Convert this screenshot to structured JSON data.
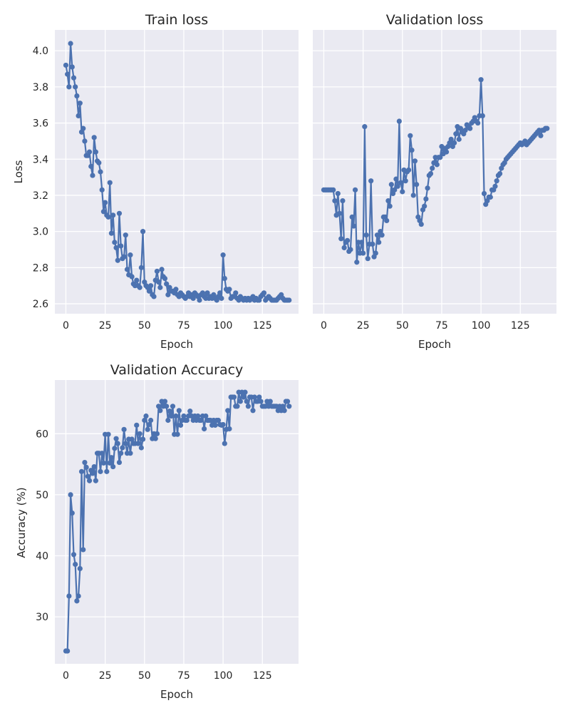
{
  "style": {
    "panel_bg": "#eaeaf2",
    "grid": "#ffffff",
    "series_color": "#4c72b0",
    "text": "#262626"
  },
  "chart_data": [
    {
      "type": "line",
      "title": "Train loss",
      "xlabel": "Epoch",
      "ylabel": "Loss",
      "xlim": [
        -7,
        148
      ],
      "ylim": [
        2.545,
        4.115
      ],
      "xticks": [
        0,
        25,
        50,
        75,
        100,
        125
      ],
      "xtick_labels": [
        "0",
        "25",
        "50",
        "75",
        "100",
        "125"
      ],
      "yticks": [
        2.6,
        2.8,
        3.0,
        3.2,
        3.4,
        3.6,
        3.8,
        4.0
      ],
      "ytick_labels": [
        "2.6",
        "2.8",
        "3.0",
        "3.2",
        "3.4",
        "3.6",
        "3.8",
        "4.0"
      ],
      "grid": true,
      "markers": true,
      "series": [
        {
          "values": [
            3.92,
            3.87,
            3.8,
            4.04,
            3.91,
            3.85,
            3.8,
            3.75,
            3.64,
            3.71,
            3.55,
            3.57,
            3.5,
            3.42,
            3.42,
            3.44,
            3.36,
            3.31,
            3.52,
            3.44,
            3.39,
            3.38,
            3.33,
            3.23,
            3.11,
            3.16,
            3.09,
            3.08,
            3.27,
            2.99,
            3.09,
            2.94,
            2.91,
            2.84,
            3.1,
            2.92,
            2.85,
            2.86,
            2.98,
            2.79,
            2.76,
            2.87,
            2.75,
            2.71,
            2.7,
            2.73,
            2.7,
            2.69,
            2.8,
            3.0,
            2.72,
            2.7,
            2.69,
            2.67,
            2.7,
            2.65,
            2.64,
            2.73,
            2.78,
            2.72,
            2.69,
            2.79,
            2.75,
            2.74,
            2.71,
            2.65,
            2.69,
            2.67,
            2.67,
            2.66,
            2.68,
            2.65,
            2.64,
            2.66,
            2.65,
            2.64,
            2.63,
            2.64,
            2.66,
            2.64,
            2.65,
            2.63,
            2.66,
            2.65,
            2.64,
            2.62,
            2.65,
            2.66,
            2.64,
            2.63,
            2.66,
            2.63,
            2.64,
            2.63,
            2.65,
            2.63,
            2.62,
            2.64,
            2.66,
            2.63,
            2.87,
            2.74,
            2.68,
            2.67,
            2.68,
            2.63,
            2.64,
            2.64,
            2.66,
            2.63,
            2.62,
            2.64,
            2.63,
            2.62,
            2.63,
            2.62,
            2.63,
            2.62,
            2.63,
            2.64,
            2.62,
            2.63,
            2.62,
            2.62,
            2.64,
            2.65,
            2.66,
            2.62,
            2.63,
            2.64,
            2.63,
            2.62,
            2.62,
            2.62,
            2.62,
            2.63,
            2.64,
            2.65,
            2.63,
            2.62,
            2.62,
            2.62,
            2.62
          ]
        }
      ]
    },
    {
      "type": "line",
      "title": "Validation loss",
      "xlabel": "Epoch",
      "ylabel": "",
      "xlim": [
        -7,
        148
      ],
      "ylim": [
        2.545,
        4.115
      ],
      "xticks": [
        0,
        25,
        50,
        75,
        100,
        125
      ],
      "xtick_labels": [
        "0",
        "25",
        "50",
        "75",
        "100",
        "125"
      ],
      "yticks": [
        2.6,
        2.8,
        3.0,
        3.2,
        3.4,
        3.6,
        3.8,
        4.0
      ],
      "ytick_labels": [],
      "shared_y_with_left": true,
      "grid": true,
      "markers": true,
      "series": [
        {
          "values": [
            3.23,
            3.23,
            3.23,
            3.23,
            3.23,
            3.23,
            3.23,
            3.17,
            3.09,
            3.21,
            3.1,
            2.96,
            3.17,
            2.91,
            2.94,
            2.95,
            2.89,
            2.9,
            3.08,
            3.03,
            3.23,
            2.83,
            2.94,
            2.88,
            2.94,
            2.88,
            3.58,
            2.98,
            2.85,
            2.93,
            3.28,
            2.93,
            2.86,
            2.88,
            2.98,
            2.94,
            3.0,
            2.98,
            3.08,
            3.08,
            3.06,
            3.17,
            3.14,
            3.26,
            3.21,
            3.23,
            3.29,
            3.25,
            3.61,
            3.27,
            3.22,
            3.34,
            3.28,
            3.33,
            3.34,
            3.53,
            3.45,
            3.2,
            3.39,
            3.26,
            3.08,
            3.06,
            3.04,
            3.12,
            3.14,
            3.18,
            3.24,
            3.31,
            3.32,
            3.35,
            3.38,
            3.41,
            3.37,
            3.41,
            3.41,
            3.47,
            3.43,
            3.46,
            3.44,
            3.47,
            3.49,
            3.51,
            3.47,
            3.49,
            3.54,
            3.58,
            3.51,
            3.57,
            3.55,
            3.54,
            3.56,
            3.59,
            3.58,
            3.57,
            3.6,
            3.61,
            3.63,
            3.61,
            3.6,
            3.64,
            3.84,
            3.64,
            3.21,
            3.15,
            3.17,
            3.19,
            3.19,
            3.23,
            3.23,
            3.25,
            3.28,
            3.31,
            3.32,
            3.35,
            3.37,
            3.38,
            3.4,
            3.41,
            3.42,
            3.43,
            3.44,
            3.45,
            3.46,
            3.47,
            3.48,
            3.49,
            3.48,
            3.49,
            3.5,
            3.48,
            3.49,
            3.5,
            3.51,
            3.52,
            3.53,
            3.54,
            3.55,
            3.56,
            3.53,
            3.56,
            3.56,
            3.57,
            3.57
          ]
        }
      ]
    },
    {
      "type": "line",
      "title": "Validation Accuracy",
      "xlabel": "Epoch",
      "ylabel": "Accuracy (%)",
      "xlim": [
        -7,
        148
      ],
      "ylim": [
        22.3,
        68.8
      ],
      "xticks": [
        0,
        25,
        50,
        75,
        100,
        125
      ],
      "xtick_labels": [
        "0",
        "25",
        "50",
        "75",
        "100",
        "125"
      ],
      "yticks": [
        30,
        40,
        50,
        60
      ],
      "ytick_labels": [
        "30",
        "40",
        "50",
        "60"
      ],
      "grid": true,
      "markers": true,
      "series": [
        {
          "values": [
            24.4,
            24.4,
            33.4,
            50.0,
            47.0,
            40.2,
            38.6,
            32.6,
            33.4,
            37.9,
            53.8,
            41.0,
            55.3,
            54.5,
            53.0,
            52.3,
            54.0,
            53.5,
            54.6,
            52.3,
            56.8,
            56.8,
            53.8,
            56.8,
            55.2,
            59.9,
            53.8,
            59.9,
            55.2,
            56.1,
            54.6,
            57.6,
            59.2,
            58.4,
            55.3,
            56.8,
            57.7,
            60.7,
            58.4,
            56.8,
            59.1,
            56.8,
            59.1,
            58.4,
            58.4,
            61.4,
            58.4,
            60.0,
            57.7,
            59.1,
            62.2,
            62.9,
            60.7,
            61.5,
            62.2,
            59.2,
            60.0,
            59.2,
            60.0,
            64.5,
            63.8,
            65.3,
            64.5,
            65.3,
            64.5,
            62.2,
            63.7,
            62.9,
            64.5,
            59.9,
            62.9,
            59.9,
            63.8,
            61.4,
            62.2,
            62.9,
            62.2,
            62.2,
            62.9,
            63.7,
            62.9,
            62.2,
            62.9,
            62.2,
            62.9,
            62.2,
            62.2,
            62.9,
            60.8,
            62.9,
            62.2,
            62.2,
            62.2,
            61.4,
            62.2,
            61.4,
            62.2,
            62.2,
            61.5,
            61.4,
            61.5,
            58.4,
            60.7,
            63.8,
            60.8,
            66.0,
            66.0,
            66.0,
            64.5,
            64.5,
            66.8,
            65.3,
            66.8,
            66.0,
            66.8,
            65.3,
            64.5,
            66.0,
            66.0,
            63.8,
            66.0,
            65.3,
            65.3,
            66.0,
            65.3,
            64.5,
            64.5,
            64.5,
            65.3,
            64.5,
            65.3,
            64.5,
            64.5,
            64.5,
            64.5,
            63.8,
            64.5,
            63.8,
            64.5,
            63.8,
            65.3,
            65.3,
            64.5
          ]
        }
      ]
    }
  ]
}
